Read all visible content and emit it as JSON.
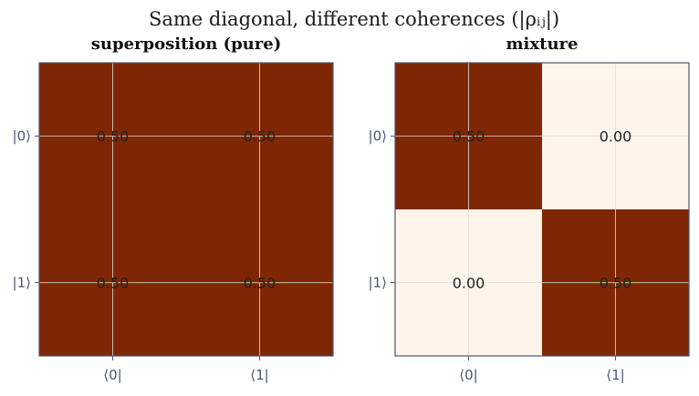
{
  "chart_data": {
    "type": "heatmap",
    "suptitle": "Same diagonal, different coherences  (|ρᵢⱼ|)",
    "colors": {
      "low": "#fff5eb",
      "high": "#7f2704",
      "grid": "#dddddd",
      "frame": "#4a5570"
    },
    "vmin": 0,
    "vmax": 0.5,
    "grid": true,
    "panels": [
      {
        "title": "superposition (pure)",
        "row_labels": [
          "|0⟩",
          "|1⟩"
        ],
        "col_labels": [
          "⟨0|",
          "⟨1|"
        ],
        "values": [
          [
            0.5,
            0.5
          ],
          [
            0.5,
            0.5
          ]
        ],
        "cell_labels": [
          [
            "0.50",
            "0.50"
          ],
          [
            "0.50",
            "0.50"
          ]
        ]
      },
      {
        "title": "mixture",
        "row_labels": [
          "|0⟩",
          "|1⟩"
        ],
        "col_labels": [
          "⟨0|",
          "⟨1|"
        ],
        "values": [
          [
            0.5,
            0.0
          ],
          [
            0.0,
            0.5
          ]
        ],
        "cell_labels": [
          [
            "0.50",
            "0.00"
          ],
          [
            "0.00",
            "0.50"
          ]
        ]
      }
    ]
  }
}
